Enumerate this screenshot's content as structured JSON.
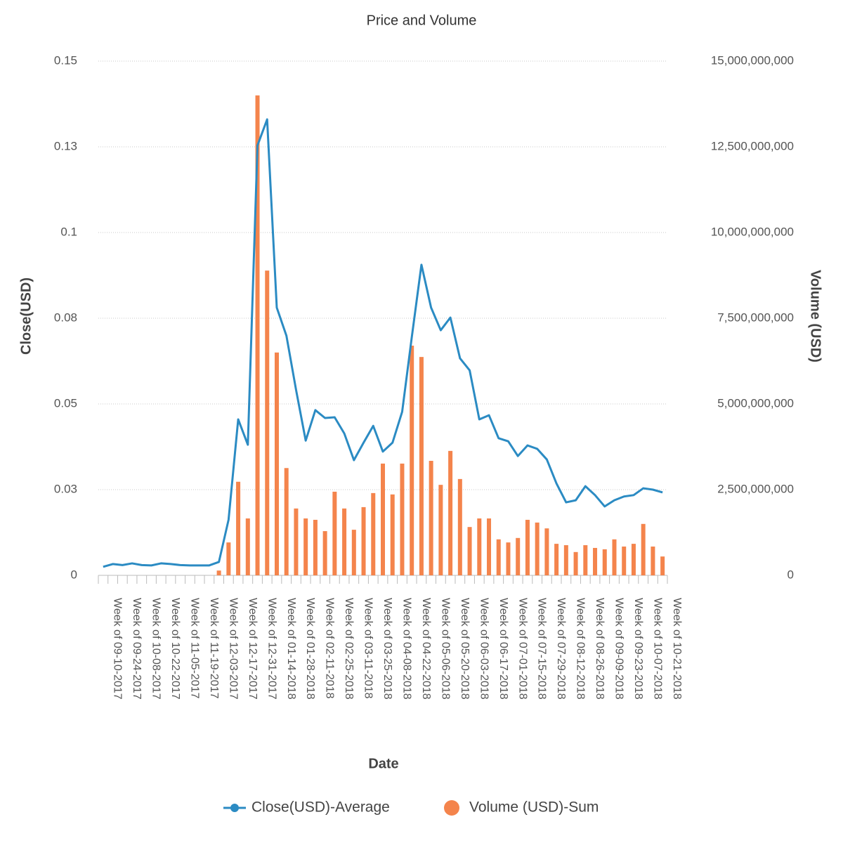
{
  "chart_data": {
    "type": "combo",
    "title": "Price and Volume",
    "x_label": "Date",
    "y_label": "Close(USD)",
    "y2_label": "Volume (USD)",
    "categories": [
      "Week of 09-10-2017",
      null,
      "Week of 09-24-2017",
      null,
      "Week of 10-08-2017",
      null,
      "Week of 10-22-2017",
      null,
      "Week of 11-05-2017",
      null,
      "Week of 11-19-2017",
      null,
      "Week of 12-03-2017",
      null,
      "Week of 12-17-2017",
      null,
      "Week of 12-31-2017",
      null,
      "Week of 01-14-2018",
      null,
      "Week of 01-28-2018",
      null,
      "Week of 02-11-2018",
      null,
      "Week of 02-25-2018",
      null,
      "Week of 03-11-2018",
      null,
      "Week of 03-25-2018",
      null,
      "Week of 04-08-2018",
      null,
      "Week of 04-22-2018",
      null,
      "Week of 05-06-2018",
      null,
      "Week of 05-20-2018",
      null,
      "Week of 06-03-2018",
      null,
      "Week of 06-17-2018",
      null,
      "Week of 07-01-2018",
      null,
      "Week of 07-15-2018",
      null,
      "Week of 07-29-2018",
      null,
      "Week of 08-12-2018",
      null,
      "Week of 08-26-2018",
      null,
      "Week of 09-09-2018",
      null,
      "Week of 09-23-2018",
      null,
      "Week of 10-07-2018",
      null,
      "Week of 10-21-2018"
    ],
    "series": [
      {
        "name": "Close(USD)-Average",
        "type": "line",
        "axis": "y",
        "color": "#2b8bc3",
        "values": [
          0.0025,
          0.0033,
          0.003,
          0.0035,
          0.003,
          0.0029,
          0.0035,
          0.0033,
          0.003,
          0.0029,
          0.0029,
          0.0029,
          0.0039,
          0.0162,
          0.0455,
          0.0381,
          0.1254,
          0.133,
          0.0781,
          0.0699,
          0.0541,
          0.0393,
          0.0482,
          0.0459,
          0.0461,
          0.0414,
          0.0336,
          0.0387,
          0.0436,
          0.0361,
          0.0387,
          0.0477,
          0.0695,
          0.0906,
          0.0781,
          0.0715,
          0.0752,
          0.0633,
          0.0598,
          0.0455,
          0.0467,
          0.04,
          0.0391,
          0.0348,
          0.0379,
          0.0369,
          0.0338,
          0.0268,
          0.0213,
          0.0219,
          0.026,
          0.0234,
          0.0201,
          0.0219,
          0.023,
          0.0234,
          0.0254,
          0.025,
          0.0242
        ]
      },
      {
        "name": "Volume (USD)-Sum",
        "type": "bar",
        "axis": "y2",
        "color": "#f4844c",
        "values": [
          0,
          0,
          0,
          0,
          0,
          0,
          0,
          0,
          0,
          0,
          0,
          0,
          140000000,
          960000000,
          2730000000,
          1660000000,
          14000000000,
          8890000000,
          6500000000,
          3130000000,
          1950000000,
          1660000000,
          1620000000,
          1290000000,
          2440000000,
          1950000000,
          1330000000,
          1990000000,
          2400000000,
          3260000000,
          2360000000,
          3260000000,
          6700000000,
          6370000000,
          3340000000,
          2640000000,
          3630000000,
          2810000000,
          1410000000,
          1660000000,
          1660000000,
          1050000000,
          960000000,
          1090000000,
          1620000000,
          1540000000,
          1370000000,
          920000000,
          880000000,
          680000000,
          880000000,
          800000000,
          760000000,
          1050000000,
          840000000,
          920000000,
          1500000000,
          840000000,
          550000000
        ]
      }
    ],
    "ylim": [
      0,
      0.15
    ],
    "yticks": [
      0,
      {
        "value": 0.025,
        "label": "0.03"
      },
      0.05,
      {
        "value": 0.075,
        "label": "0.08"
      },
      0.1,
      {
        "value": 0.125,
        "label": "0.13"
      },
      0.15
    ],
    "y2lim": [
      0,
      15000000000
    ],
    "y2ticks": [
      0,
      {
        "value": 2500000000,
        "label": "2,500,000,000"
      },
      {
        "value": 5000000000,
        "label": "5,000,000,000"
      },
      {
        "value": 7500000000,
        "label": "7,500,000,000"
      },
      {
        "value": 10000000000,
        "label": "10,000,000,000"
      },
      {
        "value": 12500000000,
        "label": "12,500,000,000"
      },
      {
        "value": 15000000000,
        "label": "15,000,000,000"
      }
    ],
    "grid": true,
    "legend": "bottom"
  }
}
